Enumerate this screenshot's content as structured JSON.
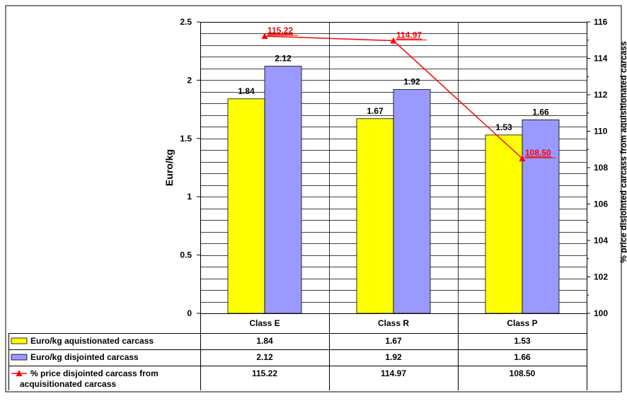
{
  "chart_data": {
    "type": "bar",
    "categories": [
      "Class E",
      "Class R",
      "Class P"
    ],
    "series": [
      {
        "name": "Euro/kg aquistionated carcass",
        "type": "bar",
        "axis": "left",
        "color": "#ffff00",
        "values": [
          1.84,
          1.67,
          1.53
        ],
        "labels": [
          "1.84",
          "1.67",
          "1.53"
        ]
      },
      {
        "name": "Euro/kg disjointed carcass",
        "type": "bar",
        "axis": "left",
        "color": "#9999ff",
        "values": [
          2.12,
          1.92,
          1.66
        ],
        "labels": [
          "2.12",
          "1.92",
          "1.66"
        ]
      },
      {
        "name": "% price disjointed carcass from acquisitionated carcass",
        "type": "line",
        "axis": "right",
        "color": "#ff0000",
        "marker": "triangle",
        "values": [
          115.22,
          114.97,
          108.5
        ],
        "labels": [
          "115.22",
          "114.97",
          "108.50"
        ]
      }
    ],
    "ylabel": "Euro/kg",
    "y2label": "% price disjointed carcass from aquisitionated carcass",
    "ylim": [
      0,
      2.5
    ],
    "y2lim": [
      100,
      116
    ],
    "yticks": [
      "0",
      "0.5",
      "1",
      "1.5",
      "2",
      "2.5"
    ],
    "y2ticks": [
      "100",
      "102",
      "104",
      "106",
      "108",
      "110",
      "112",
      "114",
      "116"
    ],
    "grid": true,
    "legend": "data-table-below",
    "table": {
      "rows": [
        {
          "label": "Euro/kg aquistionated carcass",
          "values": [
            "1.84",
            "1.67",
            "1.53"
          ]
        },
        {
          "label": "Euro/kg disjointed carcass",
          "values": [
            "2.12",
            "1.92",
            "1.66"
          ]
        },
        {
          "label_lines": [
            "% price disjointed carcass from",
            "acquisitionated carcass"
          ],
          "values": [
            "115.22",
            "114.97",
            "108.50"
          ]
        }
      ]
    }
  }
}
